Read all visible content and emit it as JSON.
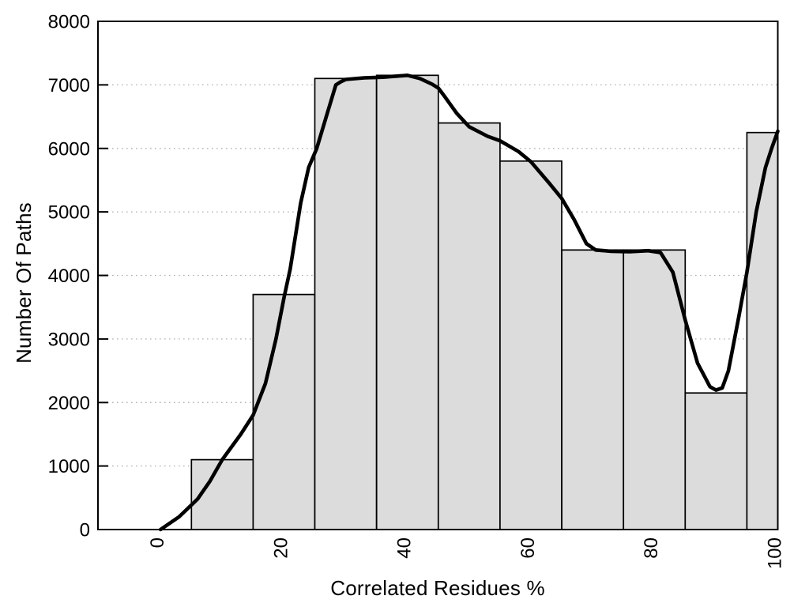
{
  "chart_data": {
    "type": "bar",
    "subtype": "histogram-with-smooth-line",
    "title": "",
    "xlabel": "Correlated Residues %",
    "ylabel": "Number Of Paths",
    "xlim": [
      -10.14,
      100
    ],
    "ylim": [
      0,
      8000
    ],
    "x_ticks": [
      0,
      20,
      40,
      60,
      80,
      100
    ],
    "y_ticks": [
      0,
      1000,
      2000,
      3000,
      4000,
      5000,
      6000,
      7000,
      8000
    ],
    "grid_levels": [
      1000,
      2000,
      3000,
      4000,
      5000,
      6000,
      7000
    ],
    "grid_style": "dotted-horizontal",
    "legend": "none",
    "bin_edges": [
      5,
      15,
      25,
      35,
      45,
      55,
      65,
      75,
      85,
      95,
      100
    ],
    "bar_values": [
      1100,
      3700,
      7100,
      7150,
      6400,
      5800,
      4400,
      4400,
      2150,
      6250
    ],
    "series": [
      {
        "name": "smoothed-curve",
        "points": [
          [
            0,
            0
          ],
          [
            3,
            200
          ],
          [
            6,
            480
          ],
          [
            8,
            760
          ],
          [
            10,
            1100
          ],
          [
            13,
            1500
          ],
          [
            15,
            1800
          ],
          [
            17,
            2300
          ],
          [
            18.7,
            3000
          ],
          [
            20,
            3650
          ],
          [
            21,
            4100
          ],
          [
            22.7,
            5140
          ],
          [
            24,
            5700
          ],
          [
            25.3,
            6000
          ],
          [
            27,
            6550
          ],
          [
            28.4,
            7000
          ],
          [
            29.2,
            7050
          ],
          [
            30,
            7085
          ],
          [
            33,
            7110
          ],
          [
            36,
            7120
          ],
          [
            40,
            7150
          ],
          [
            42,
            7100
          ],
          [
            44,
            7010
          ],
          [
            45,
            6950
          ],
          [
            46,
            6820
          ],
          [
            48,
            6550
          ],
          [
            50,
            6340
          ],
          [
            53,
            6190
          ],
          [
            55,
            6120
          ],
          [
            58,
            5950
          ],
          [
            60,
            5790
          ],
          [
            63,
            5450
          ],
          [
            65,
            5210
          ],
          [
            67,
            4880
          ],
          [
            69,
            4500
          ],
          [
            70.5,
            4400
          ],
          [
            73,
            4380
          ],
          [
            76,
            4375
          ],
          [
            79,
            4390
          ],
          [
            81,
            4360
          ],
          [
            83,
            4050
          ],
          [
            85,
            3300
          ],
          [
            87,
            2620
          ],
          [
            89,
            2250
          ],
          [
            90,
            2195
          ],
          [
            91,
            2230
          ],
          [
            92,
            2500
          ],
          [
            93.7,
            3360
          ],
          [
            95,
            4050
          ],
          [
            96.5,
            5000
          ],
          [
            98,
            5700
          ],
          [
            99,
            6000
          ],
          [
            100,
            6270
          ]
        ]
      }
    ],
    "colors": {
      "background": "#ffffff",
      "bar_fill": "#dcdcdc",
      "bar_stroke": "#000000",
      "curve": "#000000",
      "grid": "#b0b0b0",
      "axis": "#000000",
      "text": "#000000"
    }
  }
}
